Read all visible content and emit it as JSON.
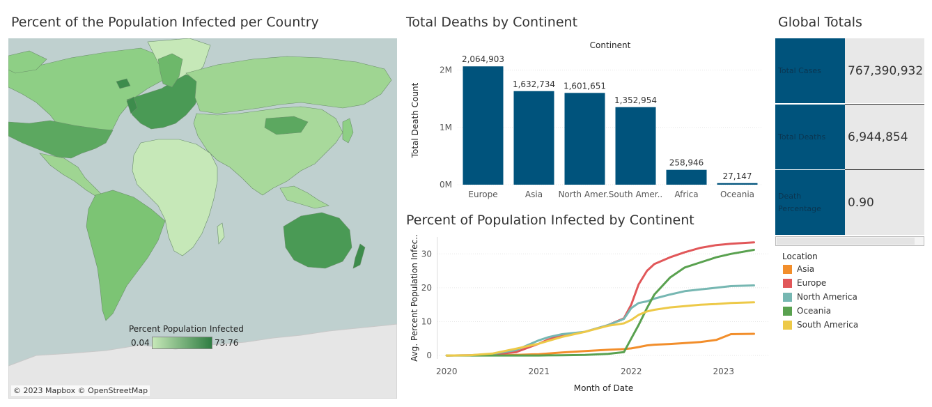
{
  "map": {
    "title": "Percent of the Population Infected per Country",
    "legend_title": "Percent Population Infected",
    "legend_min": "0.04",
    "legend_max": "73.76",
    "attribution": "© 2023 Mapbox © OpenStreetMap",
    "colors": {
      "ocean": "#bfd0cf",
      "antarctica": "#e6e6e6",
      "low": "#c6e8b8",
      "mid": "#8ecf85",
      "high": "#2f7d42"
    }
  },
  "bar_title": "Total Deaths by Continent",
  "line_title": "Percent of Population Infected by Continent",
  "totals": {
    "title": "Global Totals",
    "rows": [
      {
        "label": "Total Cases",
        "value": "767,390,932"
      },
      {
        "label": "Total Deaths",
        "value": "6,944,854"
      },
      {
        "label": "Death Percentage",
        "value": "0.90"
      }
    ]
  },
  "line_legend": {
    "title": "Location"
  },
  "chart_data": [
    {
      "type": "bar",
      "header": "Continent",
      "categories": [
        "Europe",
        "Asia",
        "North America",
        "South America",
        "Africa",
        "Oceania"
      ],
      "tick_labels": [
        "Europe",
        "Asia",
        "North Amer..",
        "South Amer..",
        "Africa",
        "Oceania"
      ],
      "values": [
        2064903,
        1632734,
        1601651,
        1352954,
        258946,
        27147
      ],
      "data_labels": [
        "2,064,903",
        "1,632,734",
        "1,601,651",
        "1,352,954",
        "258,946",
        "27,147"
      ],
      "ylabel": "Total Death Count",
      "yticks": [
        0,
        1000000,
        2000000
      ],
      "ytick_labels": [
        "0M",
        "1M",
        "2M"
      ],
      "ylim": [
        0,
        2250000
      ],
      "color": "#00537c",
      "grid": true
    },
    {
      "type": "line",
      "xlabel": "Month of Date",
      "ylabel": "Avg. Percent Population Infec..",
      "x": [
        2020.0,
        2020.25,
        2020.5,
        2020.75,
        2021.0,
        2021.1,
        2021.25,
        2021.5,
        2021.75,
        2021.92,
        2022.0,
        2022.08,
        2022.17,
        2022.25,
        2022.42,
        2022.58,
        2022.75,
        2022.92,
        2023.08,
        2023.33
      ],
      "xlim": [
        2019.9,
        2023.5
      ],
      "xticks": [
        2020,
        2021,
        2022,
        2023
      ],
      "xtick_labels": [
        "2020",
        "2021",
        "2022",
        "2023"
      ],
      "ylim": [
        -1,
        35
      ],
      "yticks": [
        0,
        10,
        20,
        30
      ],
      "grid": true,
      "series": [
        {
          "name": "Asia",
          "color": "#f28e2b",
          "values": [
            0,
            0.05,
            0.1,
            0.2,
            0.4,
            0.6,
            0.9,
            1.3,
            1.7,
            1.9,
            2.1,
            2.5,
            3.0,
            3.2,
            3.4,
            3.7,
            4.0,
            4.6,
            6.3,
            6.4
          ]
        },
        {
          "name": "Europe",
          "color": "#e15759",
          "values": [
            0,
            0.1,
            0.3,
            1.0,
            3.5,
            4.7,
            6.0,
            7.0,
            9.0,
            11.0,
            15.0,
            21.0,
            25.0,
            27.0,
            29.0,
            30.5,
            31.8,
            32.6,
            33.0,
            33.4
          ]
        },
        {
          "name": "North America",
          "color": "#76b7b2",
          "values": [
            0,
            0.1,
            0.5,
            1.6,
            4.5,
            5.4,
            6.3,
            7.0,
            9.0,
            10.8,
            14.0,
            15.5,
            16.0,
            16.8,
            18.0,
            19.0,
            19.5,
            20.0,
            20.5,
            20.7
          ]
        },
        {
          "name": "Oceania",
          "color": "#59a14f",
          "values": [
            0,
            0,
            0,
            0,
            0,
            0.05,
            0.1,
            0.2,
            0.5,
            1.0,
            5.0,
            9.0,
            14.0,
            18.0,
            23.0,
            26.0,
            27.5,
            29.0,
            30.0,
            31.2
          ]
        },
        {
          "name": "South America",
          "color": "#edc948",
          "values": [
            0,
            0.1,
            0.6,
            2.0,
            3.5,
            4.3,
            5.5,
            7.0,
            8.8,
            9.5,
            10.5,
            12.0,
            13.0,
            13.5,
            14.2,
            14.6,
            15.0,
            15.2,
            15.5,
            15.7
          ]
        }
      ]
    }
  ]
}
